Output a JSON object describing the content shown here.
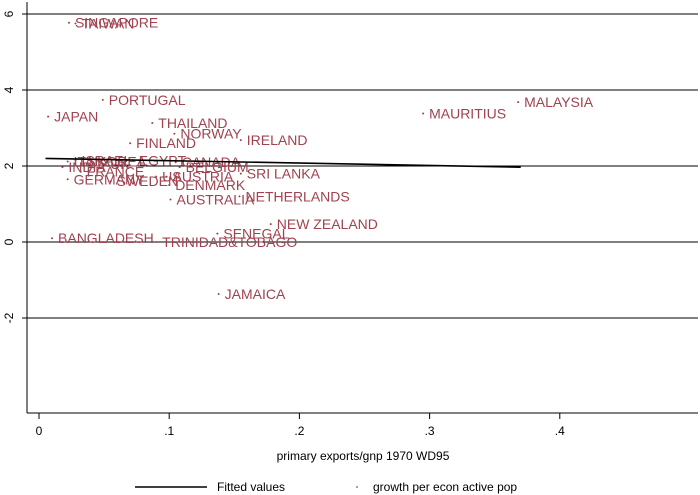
{
  "chart_data": {
    "type": "scatter",
    "xlabel": "primary exports/gnp 1970 WD95",
    "ylabel": "",
    "xlim": [
      -0.02,
      0.5
    ],
    "ylim": [
      -4.1,
      6.1
    ],
    "x_ticks": [
      0,
      0.1,
      0.2,
      0.3,
      0.4
    ],
    "x_tick_labels": [
      "0",
      ".1",
      ".2",
      ".3",
      ".4"
    ],
    "y_ticks": [
      -2,
      0,
      2,
      4,
      6
    ],
    "y_tick_labels": [
      "-2",
      "0",
      "2",
      "4",
      "6"
    ],
    "grid": "horizontal",
    "legend": {
      "position": "bottom",
      "entries": [
        "Fitted values",
        "growth per econ active pop"
      ]
    },
    "colors": {
      "points": "#a0424f",
      "fit": "#000000"
    },
    "fitted_line": {
      "x": [
        0.005,
        0.37
      ],
      "y": [
        2.2,
        1.97
      ]
    },
    "series": [
      {
        "name": "growth per econ active pop",
        "points": [
          {
            "label": "SINGAPORE",
            "x": 0.023,
            "y": 5.77
          },
          {
            "label": "TAIWAN",
            "x": 0.028,
            "y": 5.75
          },
          {
            "label": "PORTUGAL",
            "x": 0.049,
            "y": 3.74
          },
          {
            "label": "JAPAN",
            "x": 0.007,
            "y": 3.3
          },
          {
            "label": "THAILAND",
            "x": 0.087,
            "y": 3.13
          },
          {
            "label": "NORWAY",
            "x": 0.104,
            "y": 2.85
          },
          {
            "label": "IRELAND",
            "x": 0.155,
            "y": 2.68
          },
          {
            "label": "FINLAND",
            "x": 0.07,
            "y": 2.6
          },
          {
            "label": "MALAYSIA",
            "x": 0.368,
            "y": 3.68
          },
          {
            "label": "MAURITIUS",
            "x": 0.295,
            "y": 3.38
          },
          {
            "label": "CANADA",
            "x": 0.105,
            "y": 2.1
          },
          {
            "label": "ISRAEL",
            "x": 0.028,
            "y": 2.15
          },
          {
            "label": "KOREA",
            "x": 0.04,
            "y": 2.12
          },
          {
            "label": "EGYPT",
            "x": 0.072,
            "y": 2.15
          },
          {
            "label": "UK",
            "x": 0.05,
            "y": 2.05
          },
          {
            "label": "INDIA",
            "x": 0.018,
            "y": 1.97
          },
          {
            "label": "ITALY",
            "x": 0.022,
            "y": 2.12
          },
          {
            "label": "FRANCE",
            "x": 0.032,
            "y": 1.85
          },
          {
            "label": "BELGIUM",
            "x": 0.108,
            "y": 1.97
          },
          {
            "label": "SRI LANKA",
            "x": 0.155,
            "y": 1.8
          },
          {
            "label": "GERMANY",
            "x": 0.022,
            "y": 1.65
          },
          {
            "label": "SWEDEN",
            "x": 0.055,
            "y": 1.6
          },
          {
            "label": "US",
            "x": 0.09,
            "y": 1.72
          },
          {
            "label": "DENMARK",
            "x": 0.1,
            "y": 1.5
          },
          {
            "label": "AUSTRIA",
            "x": 0.098,
            "y": 1.72
          },
          {
            "label": "NETHERLANDS",
            "x": 0.154,
            "y": 1.2
          },
          {
            "label": "AUSTRALIA",
            "x": 0.101,
            "y": 1.12
          },
          {
            "label": "NEW ZEALAND",
            "x": 0.178,
            "y": 0.47
          },
          {
            "label": "SENEGAL",
            "x": 0.137,
            "y": 0.22
          },
          {
            "label": "BANGLADESH",
            "x": 0.01,
            "y": 0.1
          },
          {
            "label": "TRINIDAD&TOBAGO",
            "x": 0.09,
            "y": 0.0
          },
          {
            "label": "JAMAICA",
            "x": 0.138,
            "y": -1.37
          }
        ]
      }
    ]
  }
}
